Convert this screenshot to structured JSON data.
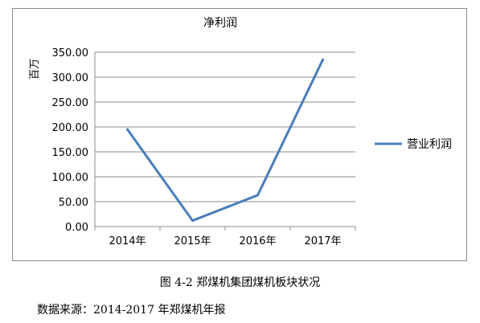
{
  "chart_data": {
    "type": "line",
    "title": "净利润",
    "ylabel": "百万",
    "xlabel": "",
    "categories": [
      "2014年",
      "2015年",
      "2016年",
      "2017年"
    ],
    "series": [
      {
        "name": "营业利润",
        "values": [
          195,
          12,
          63,
          335
        ],
        "color": "#4a7ebb"
      }
    ],
    "ylim": [
      0,
      350
    ],
    "yticks": [
      "0.00",
      "50.00",
      "100.00",
      "150.00",
      "200.00",
      "250.00",
      "300.00",
      "350.00"
    ],
    "grid": true,
    "legend_position": "right"
  },
  "caption": "图 4-2  郑煤机集团煤机板块状况",
  "source": "数据来源：2014-2017 年郑煤机年报"
}
